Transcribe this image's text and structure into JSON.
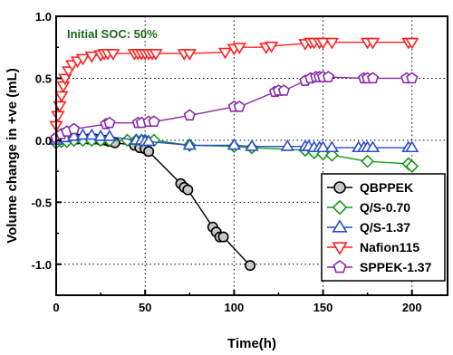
{
  "chart_data": {
    "type": "line",
    "annotation": "Initial SOC: 50%",
    "xlabel": "Time(h)",
    "ylabel": "Volume change in +ve (mL)",
    "xlim": [
      0,
      220
    ],
    "ylim": [
      -1.25,
      1.0
    ],
    "xticks": [
      0,
      50,
      100,
      150,
      200
    ],
    "yticks": [
      -1.0,
      -0.5,
      0.0,
      0.5,
      1.0
    ],
    "xtick_labels": [
      "0",
      "50",
      "100",
      "150",
      "200"
    ],
    "ytick_labels": [
      "-1.0",
      "-0.5",
      "0.0",
      "0.5",
      "1.0"
    ],
    "grid": "dotted",
    "legend_position": "bottom-right",
    "series": [
      {
        "name": "QBPPEK",
        "color": "#000000",
        "fill": "#c8c8c8",
        "marker": "circle",
        "points": [
          [
            0,
            0
          ],
          [
            2,
            0.01
          ],
          [
            5,
            0.02
          ],
          [
            8,
            0.02
          ],
          [
            10,
            0.02
          ],
          [
            12,
            0.01
          ],
          [
            15,
            0.01
          ],
          [
            18,
            0.01
          ],
          [
            22,
            0.01
          ],
          [
            25,
            0.0
          ],
          [
            28,
            0.0
          ],
          [
            30,
            -0.01
          ],
          [
            33,
            -0.02
          ],
          [
            44,
            -0.04
          ],
          [
            47,
            -0.06
          ],
          [
            50,
            -0.07
          ],
          [
            52,
            -0.09
          ],
          [
            70,
            -0.35
          ],
          [
            72,
            -0.38
          ],
          [
            74,
            -0.4
          ],
          [
            88,
            -0.7
          ],
          [
            90,
            -0.74
          ],
          [
            92,
            -0.78
          ],
          [
            94,
            -0.78
          ],
          [
            109,
            -1.01
          ]
        ]
      },
      {
        "name": "Q/S-0.70",
        "color": "#1a9a1a",
        "fill": "none",
        "marker": "diamond",
        "points": [
          [
            0,
            -0.02
          ],
          [
            3,
            -0.01
          ],
          [
            6,
            -0.01
          ],
          [
            10,
            0.0
          ],
          [
            15,
            0.0
          ],
          [
            20,
            0.0
          ],
          [
            25,
            0.0
          ],
          [
            30,
            0.0
          ],
          [
            40,
            0.0
          ],
          [
            45,
            0.0
          ],
          [
            48,
            0.0
          ],
          [
            50,
            0.0
          ],
          [
            55,
            0.0
          ],
          [
            75,
            -0.04
          ],
          [
            100,
            -0.05
          ],
          [
            110,
            -0.06
          ],
          [
            140,
            -0.08
          ],
          [
            145,
            -0.1
          ],
          [
            150,
            -0.11
          ],
          [
            155,
            -0.12
          ],
          [
            175,
            -0.17
          ],
          [
            198,
            -0.19
          ],
          [
            200,
            -0.21
          ]
        ]
      },
      {
        "name": "Q/S-1.37",
        "color": "#2a4fc8",
        "fill": "none",
        "marker": "triangle-up",
        "points": [
          [
            0,
            0.0
          ],
          [
            5,
            0.02
          ],
          [
            10,
            0.03
          ],
          [
            15,
            0.04
          ],
          [
            20,
            0.04
          ],
          [
            25,
            0.03
          ],
          [
            30,
            0.03
          ],
          [
            45,
            0.0
          ],
          [
            48,
            0.0
          ],
          [
            50,
            -0.01
          ],
          [
            52,
            -0.01
          ],
          [
            75,
            -0.04
          ],
          [
            100,
            -0.04
          ],
          [
            110,
            -0.05
          ],
          [
            130,
            -0.05
          ],
          [
            140,
            -0.05
          ],
          [
            142,
            -0.05
          ],
          [
            145,
            -0.06
          ],
          [
            148,
            -0.06
          ],
          [
            150,
            -0.06
          ],
          [
            155,
            -0.06
          ],
          [
            170,
            -0.06
          ],
          [
            173,
            -0.06
          ],
          [
            175,
            -0.06
          ],
          [
            178,
            -0.06
          ],
          [
            198,
            -0.06
          ],
          [
            200,
            -0.06
          ]
        ]
      },
      {
        "name": "Nafion115",
        "color": "#ff2020",
        "fill": "none",
        "marker": "triangle-down",
        "points": [
          [
            0,
            0.12
          ],
          [
            1,
            0.2
          ],
          [
            2,
            0.28
          ],
          [
            3,
            0.36
          ],
          [
            4,
            0.44
          ],
          [
            5,
            0.5
          ],
          [
            7,
            0.56
          ],
          [
            9,
            0.61
          ],
          [
            12,
            0.64
          ],
          [
            15,
            0.66
          ],
          [
            20,
            0.68
          ],
          [
            25,
            0.69
          ],
          [
            27,
            0.7
          ],
          [
            29,
            0.7
          ],
          [
            32,
            0.7
          ],
          [
            44,
            0.7
          ],
          [
            46,
            0.7
          ],
          [
            48,
            0.7
          ],
          [
            50,
            0.7
          ],
          [
            52,
            0.7
          ],
          [
            54,
            0.7
          ],
          [
            56,
            0.7
          ],
          [
            72,
            0.7
          ],
          [
            75,
            0.7
          ],
          [
            95,
            0.71
          ],
          [
            100,
            0.74
          ],
          [
            103,
            0.75
          ],
          [
            118,
            0.75
          ],
          [
            121,
            0.76
          ],
          [
            140,
            0.78
          ],
          [
            143,
            0.79
          ],
          [
            145,
            0.79
          ],
          [
            148,
            0.79
          ],
          [
            150,
            0.79
          ],
          [
            155,
            0.79
          ],
          [
            175,
            0.79
          ],
          [
            178,
            0.79
          ],
          [
            198,
            0.79
          ],
          [
            200,
            0.79
          ]
        ]
      },
      {
        "name": "SPPEK-1.37",
        "color": "#8a2aa8",
        "fill": "none",
        "marker": "pentagon",
        "points": [
          [
            0,
            0.02
          ],
          [
            3,
            0.05
          ],
          [
            6,
            0.07
          ],
          [
            10,
            0.09
          ],
          [
            28,
            0.13
          ],
          [
            30,
            0.14
          ],
          [
            46,
            0.14
          ],
          [
            48,
            0.14
          ],
          [
            52,
            0.15
          ],
          [
            55,
            0.15
          ],
          [
            75,
            0.2
          ],
          [
            100,
            0.27
          ],
          [
            103,
            0.27
          ],
          [
            123,
            0.39
          ],
          [
            125,
            0.4
          ],
          [
            128,
            0.4
          ],
          [
            140,
            0.48
          ],
          [
            143,
            0.5
          ],
          [
            146,
            0.51
          ],
          [
            148,
            0.51
          ],
          [
            150,
            0.51
          ],
          [
            153,
            0.51
          ],
          [
            173,
            0.5
          ],
          [
            175,
            0.5
          ],
          [
            178,
            0.5
          ],
          [
            197,
            0.5
          ],
          [
            200,
            0.5
          ]
        ]
      }
    ]
  }
}
